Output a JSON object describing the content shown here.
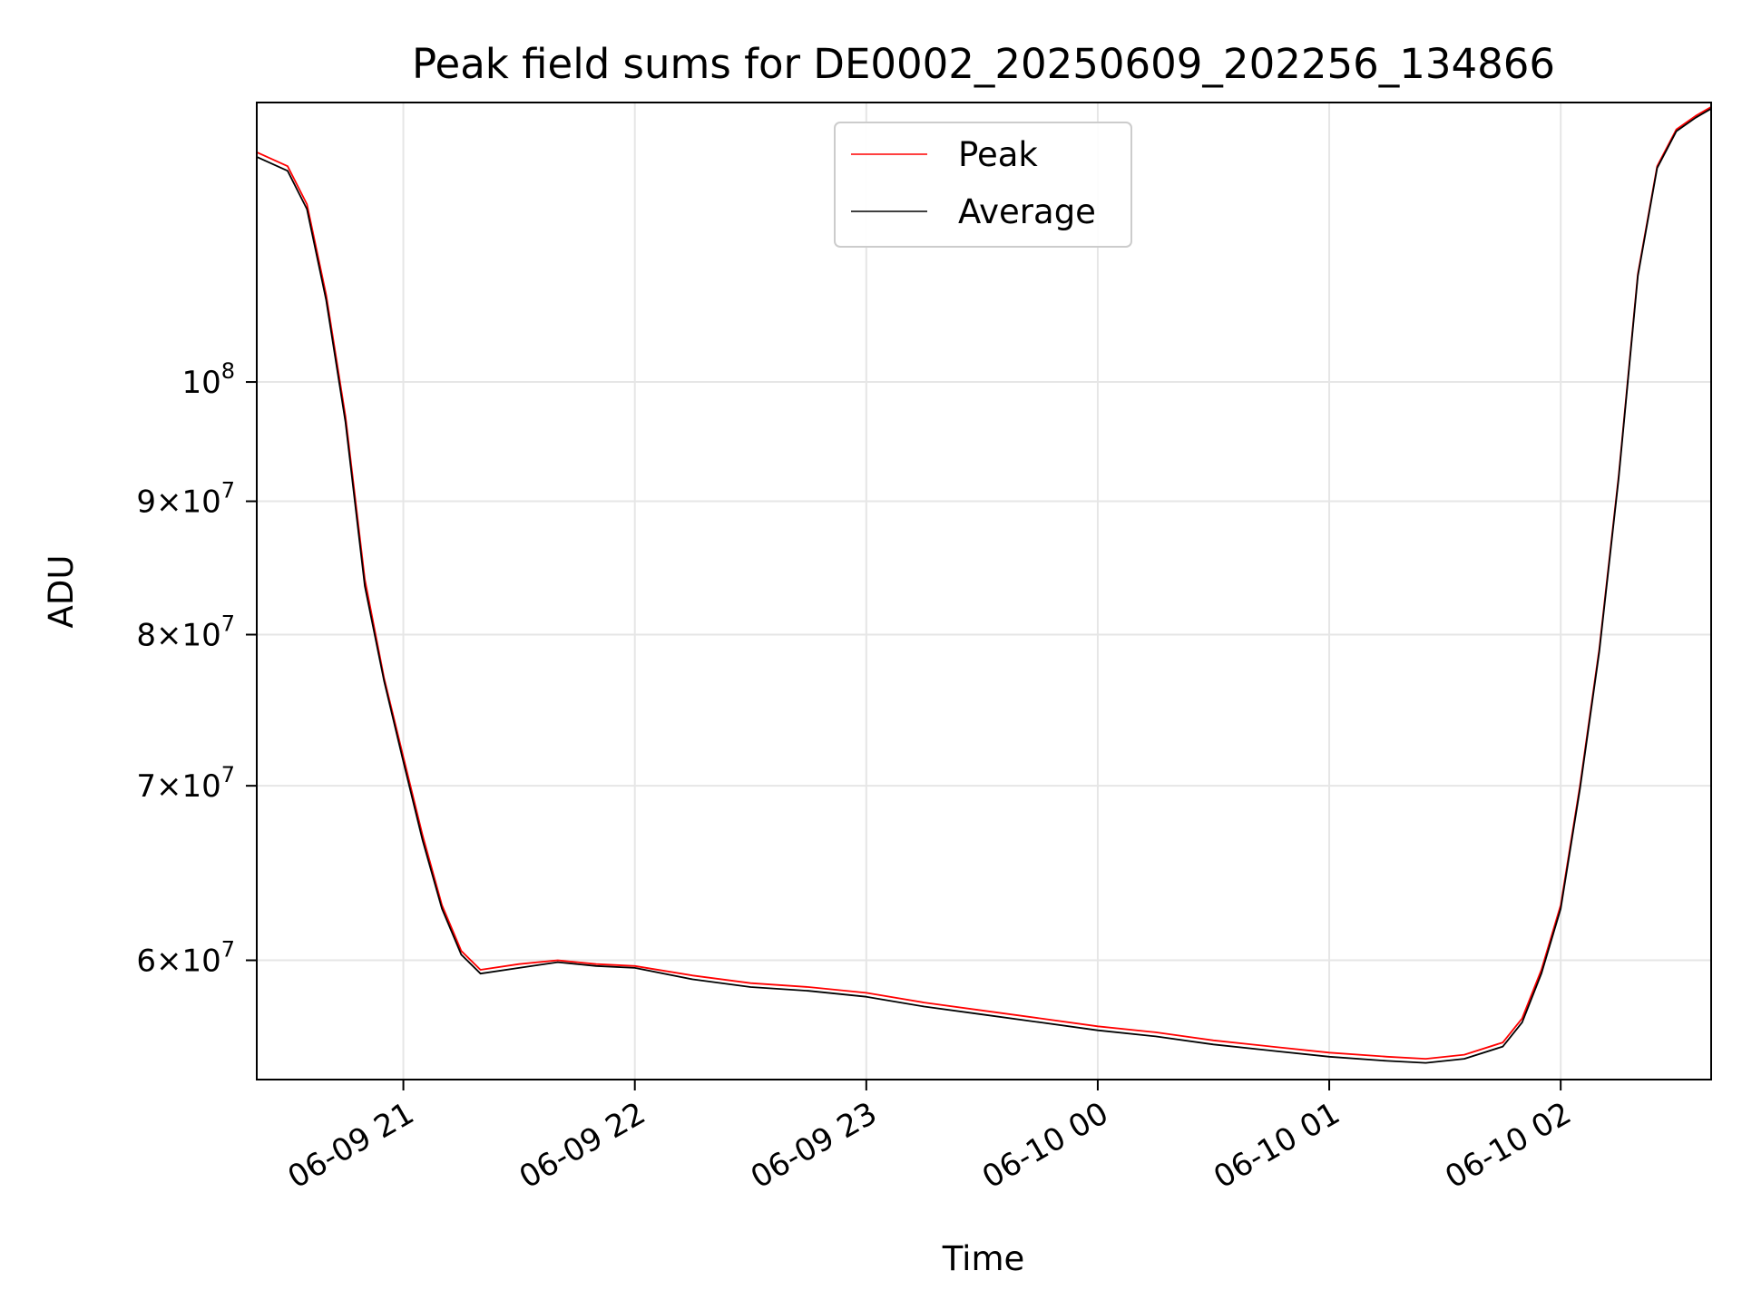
{
  "chart_data": {
    "type": "line",
    "title": "Peak field sums for DE0002_20250609_202256_134866",
    "xlabel": "Time",
    "ylabel": "ADU",
    "yscale": "log",
    "grid": true,
    "legend_placement": "upper-center",
    "xlim": [
      "2025-06-09 20:22",
      "2025-06-10 02:39"
    ],
    "ylim": [
      54000000,
      128000000
    ],
    "x_ticks": [
      {
        "value": "2025-06-09 21:00",
        "label": "06-09 21"
      },
      {
        "value": "2025-06-09 22:00",
        "label": "06-09 22"
      },
      {
        "value": "2025-06-09 23:00",
        "label": "06-09 23"
      },
      {
        "value": "2025-06-10 00:00",
        "label": "06-10 00"
      },
      {
        "value": "2025-06-10 01:00",
        "label": "06-10 01"
      },
      {
        "value": "2025-06-10 02:00",
        "label": "06-10 02"
      }
    ],
    "y_ticks": [
      {
        "value": 100000000,
        "mantissa": "",
        "exponent": "8"
      },
      {
        "value": 90000000,
        "mantissa": "9",
        "exponent": "7"
      },
      {
        "value": 80000000,
        "mantissa": "8",
        "exponent": "7"
      },
      {
        "value": 70000000,
        "mantissa": "7",
        "exponent": "7"
      },
      {
        "value": 60000000,
        "mantissa": "6",
        "exponent": "7"
      }
    ],
    "series": [
      {
        "name": "Peak",
        "color": "#ff0000",
        "x": [
          "2025-06-09 20:22",
          "2025-06-09 20:30",
          "2025-06-09 20:35",
          "2025-06-09 20:40",
          "2025-06-09 20:45",
          "2025-06-09 20:50",
          "2025-06-09 20:55",
          "2025-06-09 21:00",
          "2025-06-09 21:05",
          "2025-06-09 21:10",
          "2025-06-09 21:15",
          "2025-06-09 21:20",
          "2025-06-09 21:30",
          "2025-06-09 21:40",
          "2025-06-09 21:50",
          "2025-06-09 22:00",
          "2025-06-09 22:15",
          "2025-06-09 22:30",
          "2025-06-09 22:45",
          "2025-06-09 23:00",
          "2025-06-09 23:15",
          "2025-06-09 23:30",
          "2025-06-09 23:45",
          "2025-06-10 00:00",
          "2025-06-10 00:15",
          "2025-06-10 00:30",
          "2025-06-10 00:45",
          "2025-06-10 01:00",
          "2025-06-10 01:15",
          "2025-06-10 01:25",
          "2025-06-10 01:35",
          "2025-06-10 01:45",
          "2025-06-10 01:50",
          "2025-06-10 01:55",
          "2025-06-10 02:00",
          "2025-06-10 02:05",
          "2025-06-10 02:10",
          "2025-06-10 02:15",
          "2025-06-10 02:20",
          "2025-06-10 02:25",
          "2025-06-10 02:30",
          "2025-06-10 02:35",
          "2025-06-10 02:39"
        ],
        "values": [
          122500000,
          121000000,
          117000000,
          108000000,
          97000000,
          84000000,
          77000000,
          71800000,
          67000000,
          63000000,
          60500000,
          59500000,
          59800000,
          60000000,
          59800000,
          59700000,
          59200000,
          58800000,
          58600000,
          58300000,
          57800000,
          57400000,
          57000000,
          56600000,
          56300000,
          55900000,
          55600000,
          55300000,
          55100000,
          55000000,
          55200000,
          55800000,
          57000000,
          59500000,
          63000000,
          70000000,
          79000000,
          92000000,
          110000000,
          121000000,
          125000000,
          126500000,
          127500000
        ]
      },
      {
        "name": "Average",
        "color": "#000000",
        "x": [
          "2025-06-09 20:22",
          "2025-06-09 20:30",
          "2025-06-09 20:35",
          "2025-06-09 20:40",
          "2025-06-09 20:45",
          "2025-06-09 20:50",
          "2025-06-09 20:55",
          "2025-06-09 21:00",
          "2025-06-09 21:05",
          "2025-06-09 21:10",
          "2025-06-09 21:15",
          "2025-06-09 21:20",
          "2025-06-09 21:30",
          "2025-06-09 21:40",
          "2025-06-09 21:50",
          "2025-06-09 22:00",
          "2025-06-09 22:15",
          "2025-06-09 22:30",
          "2025-06-09 22:45",
          "2025-06-09 23:00",
          "2025-06-09 23:15",
          "2025-06-09 23:30",
          "2025-06-09 23:45",
          "2025-06-10 00:00",
          "2025-06-10 00:15",
          "2025-06-10 00:30",
          "2025-06-10 00:45",
          "2025-06-10 01:00",
          "2025-06-10 01:15",
          "2025-06-10 01:25",
          "2025-06-10 01:35",
          "2025-06-10 01:45",
          "2025-06-10 01:50",
          "2025-06-10 01:55",
          "2025-06-10 02:00",
          "2025-06-10 02:05",
          "2025-06-10 02:10",
          "2025-06-10 02:15",
          "2025-06-10 02:20",
          "2025-06-10 02:25",
          "2025-06-10 02:30",
          "2025-06-10 02:35",
          "2025-06-10 02:39"
        ],
        "values": [
          122000000,
          120500000,
          116500000,
          107500000,
          96500000,
          83500000,
          76800000,
          71500000,
          66700000,
          62800000,
          60300000,
          59300000,
          59600000,
          59900000,
          59700000,
          59600000,
          59000000,
          58600000,
          58400000,
          58100000,
          57600000,
          57200000,
          56800000,
          56400000,
          56100000,
          55700000,
          55400000,
          55100000,
          54900000,
          54800000,
          55000000,
          55600000,
          56800000,
          59300000,
          62800000,
          69800000,
          78800000,
          91800000,
          109800000,
          120800000,
          124800000,
          126300000,
          127300000
        ]
      }
    ]
  }
}
